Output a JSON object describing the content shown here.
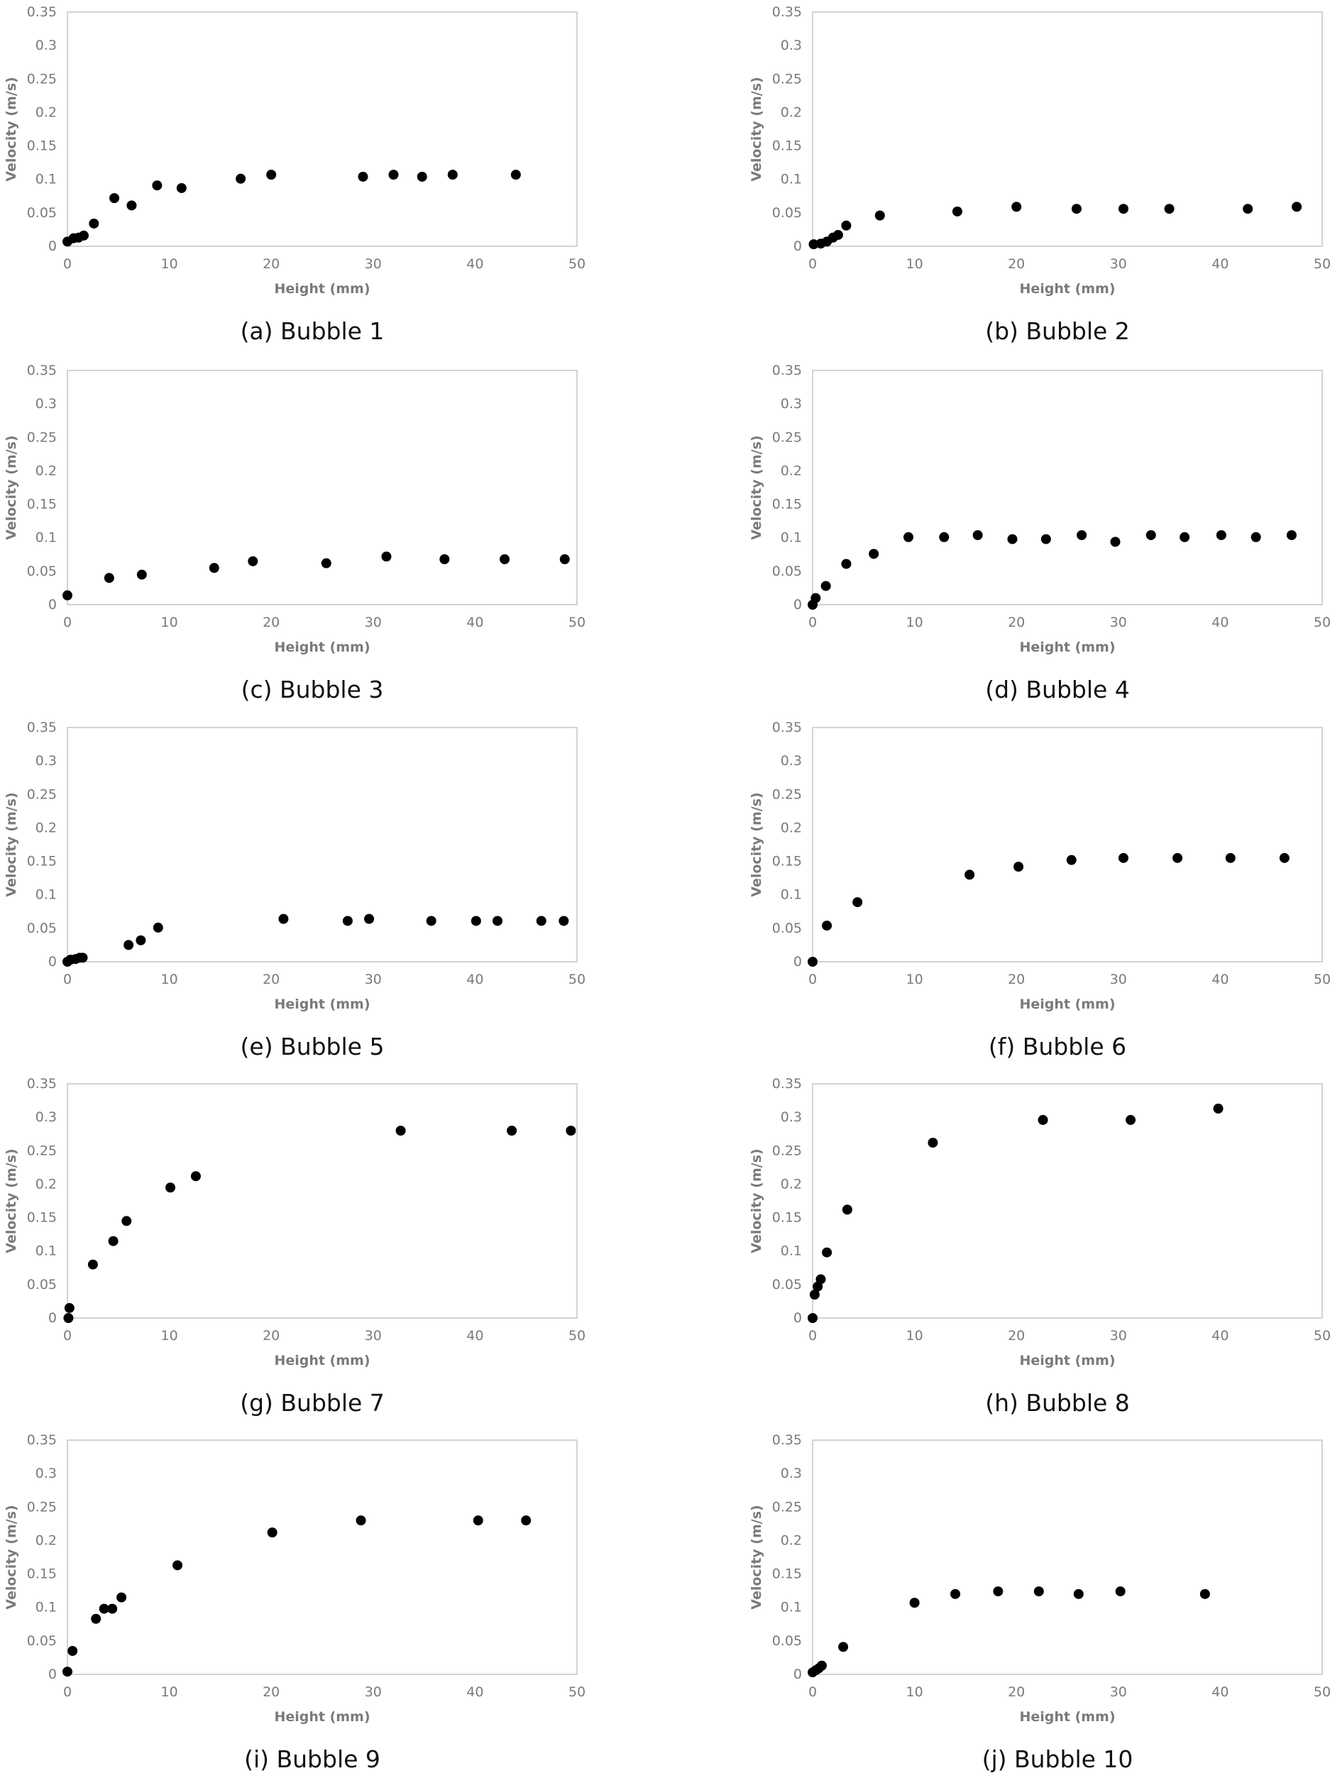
{
  "chart_data": [
    {
      "type": "scatter",
      "panel": "a",
      "caption": "(a) Bubble 1",
      "xlabel": "Height (mm)",
      "ylabel": "Velocity (m/s)",
      "xlim": [
        0,
        50
      ],
      "ylim": [
        0,
        0.35
      ],
      "x_ticks": [
        "0",
        "10",
        "20",
        "30",
        "40",
        "50"
      ],
      "y_ticks": [
        "0",
        "0.05",
        "0.1",
        "0.15",
        "0.2",
        "0.25",
        "0.3",
        "0.35"
      ],
      "points": [
        [
          0,
          0.007
        ],
        [
          0.6,
          0.012
        ],
        [
          1.1,
          0.013
        ],
        [
          1.6,
          0.016
        ],
        [
          2.6,
          0.034
        ],
        [
          4.6,
          0.072
        ],
        [
          6.3,
          0.061
        ],
        [
          8.8,
          0.091
        ],
        [
          11.2,
          0.087
        ],
        [
          17,
          0.101
        ],
        [
          20,
          0.107
        ],
        [
          29,
          0.104
        ],
        [
          32,
          0.107
        ],
        [
          34.8,
          0.104
        ],
        [
          37.8,
          0.107
        ],
        [
          44,
          0.107
        ]
      ]
    },
    {
      "type": "scatter",
      "panel": "b",
      "caption": "(b) Bubble 2",
      "xlabel": "Height (mm)",
      "ylabel": "Velocity (m/s)",
      "xlim": [
        0,
        50
      ],
      "ylim": [
        0,
        0.35
      ],
      "x_ticks": [
        "0",
        "10",
        "20",
        "30",
        "40",
        "50"
      ],
      "y_ticks": [
        "0",
        "0.05",
        "0.1",
        "0.15",
        "0.2",
        "0.25",
        "0.3",
        "0.35"
      ],
      "points": [
        [
          0.1,
          0.003
        ],
        [
          0.8,
          0.004
        ],
        [
          1.4,
          0.007
        ],
        [
          2,
          0.013
        ],
        [
          2.5,
          0.017
        ],
        [
          3.3,
          0.031
        ],
        [
          6.6,
          0.046
        ],
        [
          14.2,
          0.052
        ],
        [
          20,
          0.059
        ],
        [
          25.9,
          0.056
        ],
        [
          30.5,
          0.056
        ],
        [
          35,
          0.056
        ],
        [
          42.7,
          0.056
        ],
        [
          47.5,
          0.059
        ]
      ]
    },
    {
      "type": "scatter",
      "panel": "c",
      "caption": "(c) Bubble 3",
      "xlabel": "Height (mm)",
      "ylabel": "Velocity (m/s)",
      "xlim": [
        0,
        50
      ],
      "ylim": [
        0,
        0.35
      ],
      "x_ticks": [
        "0",
        "10",
        "20",
        "30",
        "40",
        "50"
      ],
      "y_ticks": [
        "0",
        "0.05",
        "0.1",
        "0.15",
        "0.2",
        "0.25",
        "0.3",
        "0.35"
      ],
      "points": [
        [
          0,
          0.014
        ],
        [
          4.1,
          0.04
        ],
        [
          7.3,
          0.045
        ],
        [
          14.4,
          0.055
        ],
        [
          18.2,
          0.065
        ],
        [
          25.4,
          0.062
        ],
        [
          31.3,
          0.072
        ],
        [
          37,
          0.068
        ],
        [
          42.9,
          0.068
        ],
        [
          48.8,
          0.068
        ]
      ]
    },
    {
      "type": "scatter",
      "panel": "d",
      "caption": "(d) Bubble 4",
      "xlabel": "Height (mm)",
      "ylabel": "Velocity (m/s)",
      "xlim": [
        0,
        50
      ],
      "ylim": [
        0,
        0.35
      ],
      "x_ticks": [
        "0",
        "10",
        "20",
        "30",
        "40",
        "50"
      ],
      "y_ticks": [
        "0",
        "0.05",
        "0.1",
        "0.15",
        "0.2",
        "0.25",
        "0.3",
        "0.35"
      ],
      "points": [
        [
          0,
          0
        ],
        [
          0.3,
          0.01
        ],
        [
          1.3,
          0.028
        ],
        [
          3.3,
          0.061
        ],
        [
          6,
          0.076
        ],
        [
          9.4,
          0.101
        ],
        [
          12.9,
          0.101
        ],
        [
          16.2,
          0.104
        ],
        [
          19.6,
          0.098
        ],
        [
          22.9,
          0.098
        ],
        [
          26.4,
          0.104
        ],
        [
          29.7,
          0.094
        ],
        [
          33.2,
          0.104
        ],
        [
          36.5,
          0.101
        ],
        [
          40.1,
          0.104
        ],
        [
          43.5,
          0.101
        ],
        [
          47,
          0.104
        ]
      ]
    },
    {
      "type": "scatter",
      "panel": "e",
      "caption": "(e) Bubble 5",
      "xlabel": "Height (mm)",
      "ylabel": "Velocity (m/s)",
      "xlim": [
        0,
        50
      ],
      "ylim": [
        0,
        0.35
      ],
      "x_ticks": [
        "0",
        "10",
        "20",
        "30",
        "40",
        "50"
      ],
      "y_ticks": [
        "0",
        "0.05",
        "0.1",
        "0.15",
        "0.2",
        "0.25",
        "0.3",
        "0.35"
      ],
      "points": [
        [
          0,
          0
        ],
        [
          0.3,
          0.003
        ],
        [
          0.8,
          0.004
        ],
        [
          1.2,
          0.006
        ],
        [
          1.5,
          0.006
        ],
        [
          6,
          0.025
        ],
        [
          7.2,
          0.032
        ],
        [
          8.9,
          0.051
        ],
        [
          21.2,
          0.064
        ],
        [
          27.5,
          0.061
        ],
        [
          29.6,
          0.064
        ],
        [
          35.7,
          0.061
        ],
        [
          40.1,
          0.061
        ],
        [
          42.2,
          0.061
        ],
        [
          46.5,
          0.061
        ],
        [
          48.7,
          0.061
        ]
      ]
    },
    {
      "type": "scatter",
      "panel": "f",
      "caption": "(f) Bubble 6",
      "xlabel": "Height (mm)",
      "ylabel": "Velocity (m/s)",
      "xlim": [
        0,
        50
      ],
      "ylim": [
        0,
        0.35
      ],
      "x_ticks": [
        "0",
        "10",
        "20",
        "30",
        "40",
        "50"
      ],
      "y_ticks": [
        "0",
        "0.05",
        "0.1",
        "0.15",
        "0.2",
        "0.25",
        "0.3",
        "0.35"
      ],
      "points": [
        [
          0,
          0
        ],
        [
          1.4,
          0.054
        ],
        [
          4.4,
          0.089
        ],
        [
          15.4,
          0.13
        ],
        [
          20.2,
          0.142
        ],
        [
          25.4,
          0.152
        ],
        [
          30.5,
          0.155
        ],
        [
          35.8,
          0.155
        ],
        [
          41,
          0.155
        ],
        [
          46.3,
          0.155
        ]
      ]
    },
    {
      "type": "scatter",
      "panel": "g",
      "caption": "(g) Bubble 7",
      "xlabel": "Height (mm)",
      "ylabel": "Velocity (m/s)",
      "xlim": [
        0,
        50
      ],
      "ylim": [
        0,
        0.35
      ],
      "x_ticks": [
        "0",
        "10",
        "20",
        "30",
        "40",
        "50"
      ],
      "y_ticks": [
        "0",
        "0.05",
        "0.1",
        "0.15",
        "0.2",
        "0.25",
        "0.3",
        "0.35"
      ],
      "points": [
        [
          0.1,
          0
        ],
        [
          0.2,
          0.015
        ],
        [
          2.5,
          0.08
        ],
        [
          4.5,
          0.115
        ],
        [
          5.8,
          0.145
        ],
        [
          10.1,
          0.195
        ],
        [
          12.6,
          0.212
        ],
        [
          32.7,
          0.28
        ],
        [
          43.6,
          0.28
        ],
        [
          49.4,
          0.28
        ]
      ]
    },
    {
      "type": "scatter",
      "panel": "h",
      "caption": "(h) Bubble 8",
      "xlabel": "Height (mm)",
      "ylabel": "Velocity (m/s)",
      "xlim": [
        0,
        50
      ],
      "ylim": [
        0,
        0.35
      ],
      "x_ticks": [
        "0",
        "10",
        "20",
        "30",
        "40",
        "50"
      ],
      "y_ticks": [
        "0",
        "0.05",
        "0.1",
        "0.15",
        "0.2",
        "0.25",
        "0.3",
        "0.35"
      ],
      "points": [
        [
          0,
          0
        ],
        [
          0.2,
          0.035
        ],
        [
          0.5,
          0.047
        ],
        [
          0.8,
          0.058
        ],
        [
          1.4,
          0.098
        ],
        [
          3.4,
          0.162
        ],
        [
          11.8,
          0.262
        ],
        [
          22.6,
          0.296
        ],
        [
          31.2,
          0.296
        ],
        [
          39.8,
          0.313
        ]
      ]
    },
    {
      "type": "scatter",
      "panel": "i",
      "caption": "(i) Bubble 9",
      "xlabel": "Height (mm)",
      "ylabel": "Velocity (m/s)",
      "xlim": [
        0,
        50
      ],
      "ylim": [
        0,
        0.35
      ],
      "x_ticks": [
        "0",
        "10",
        "20",
        "30",
        "40",
        "50"
      ],
      "y_ticks": [
        "0",
        "0.05",
        "0.1",
        "0.15",
        "0.2",
        "0.25",
        "0.3",
        "0.35"
      ],
      "points": [
        [
          0,
          0.004
        ],
        [
          0.5,
          0.035
        ],
        [
          2.8,
          0.083
        ],
        [
          3.6,
          0.098
        ],
        [
          4.4,
          0.098
        ],
        [
          5.3,
          0.115
        ],
        [
          10.8,
          0.163
        ],
        [
          20.1,
          0.212
        ],
        [
          28.8,
          0.23
        ],
        [
          40.3,
          0.23
        ],
        [
          45,
          0.23
        ]
      ]
    },
    {
      "type": "scatter",
      "panel": "j",
      "caption": "(j) Bubble 10",
      "xlabel": "Height (mm)",
      "ylabel": "Velocity (m/s)",
      "xlim": [
        0,
        50
      ],
      "ylim": [
        0,
        0.35
      ],
      "x_ticks": [
        "0",
        "10",
        "20",
        "30",
        "40",
        "50"
      ],
      "y_ticks": [
        "0",
        "0.05",
        "0.1",
        "0.15",
        "0.2",
        "0.25",
        "0.3",
        "0.35"
      ],
      "points": [
        [
          0,
          0.003
        ],
        [
          0.3,
          0.006
        ],
        [
          0.6,
          0.009
        ],
        [
          0.9,
          0.013
        ],
        [
          3,
          0.041
        ],
        [
          10,
          0.107
        ],
        [
          14,
          0.12
        ],
        [
          18.2,
          0.124
        ],
        [
          22.2,
          0.124
        ],
        [
          26.1,
          0.12
        ],
        [
          30.2,
          0.124
        ],
        [
          38.5,
          0.12
        ]
      ]
    }
  ]
}
